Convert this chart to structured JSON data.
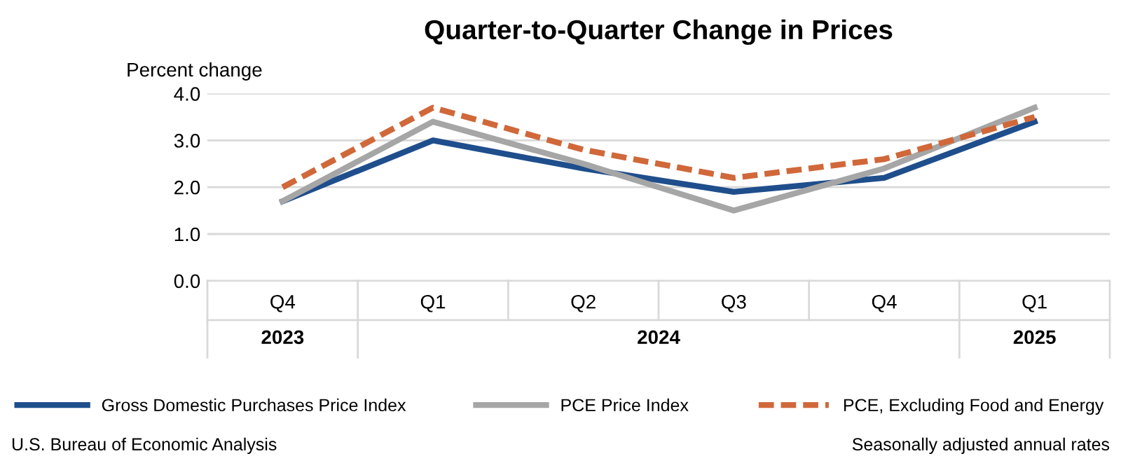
{
  "chart_data": {
    "type": "line",
    "title": "Quarter-to-Quarter Change in Prices",
    "ylabel": "Percent change",
    "categories": [
      "Q4",
      "Q1",
      "Q2",
      "Q3",
      "Q4",
      "Q1"
    ],
    "series": [
      {
        "name": "Gross Domestic Purchases Price Index",
        "color": "#1f4e8c",
        "values": [
          1.7,
          3.0,
          2.4,
          1.9,
          2.2,
          3.4
        ],
        "line_style": "solid"
      },
      {
        "name": "PCE Price Index",
        "color": "#a6a6a6",
        "values": [
          1.7,
          3.4,
          2.5,
          1.5,
          2.4,
          3.7
        ],
        "line_style": "solid"
      },
      {
        "name": "PCE, Excluding Food and Energy",
        "color": "#d0683a",
        "values": [
          2.0,
          3.7,
          2.8,
          2.2,
          2.6,
          3.5
        ],
        "line_style": "dashed"
      }
    ],
    "ylim": [
      0,
      4
    ],
    "yticks": [
      {
        "value": 0,
        "label": "0.0"
      },
      {
        "value": 1,
        "label": "1.0"
      },
      {
        "value": 2,
        "label": "2.0"
      },
      {
        "value": 3,
        "label": "3.0"
      },
      {
        "value": 4,
        "label": "4.0"
      }
    ],
    "grid": "y",
    "legend": "bottom",
    "marker": "none",
    "annotations": [
      "2023",
      "2024",
      "2025",
      "U.S. Bureau of Economic Analysis",
      "Seasonally adjusted annual rates"
    ]
  }
}
